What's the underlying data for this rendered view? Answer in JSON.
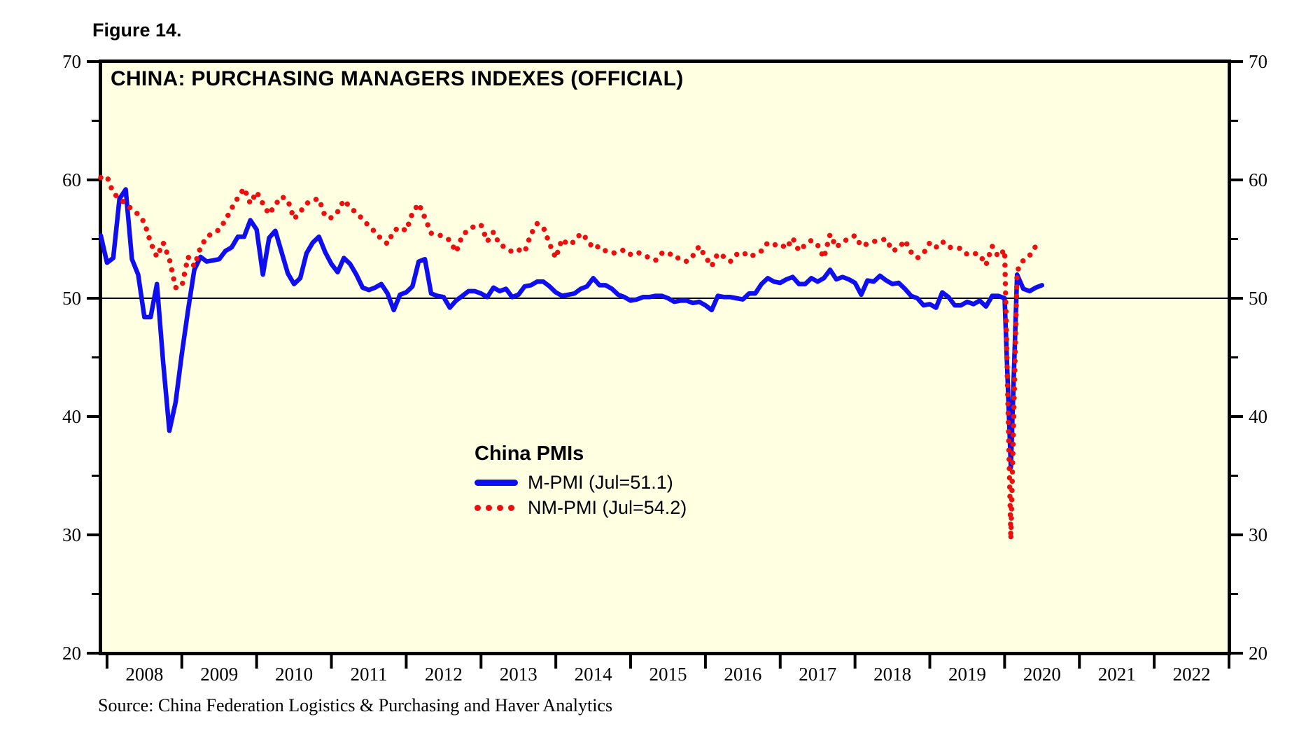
{
  "figure_label": "Figure 14.",
  "chart_title": "CHINA: PURCHASING MANAGERS INDEXES (OFFICIAL)",
  "source": "Source: China Federation Logistics & Purchasing and Haver Analytics",
  "colors": {
    "m_pmi": "#0E0EF0",
    "nm_pmi": "#EC0F0F",
    "plot_bg": "#FFFFE1",
    "axis": "#000000"
  },
  "legend": {
    "title": "China PMIs",
    "items": [
      {
        "label": "M-PMI (Jul=51.1)"
      },
      {
        "label": "NM-PMI (Jul=54.2)"
      }
    ]
  },
  "chart_data": {
    "type": "line",
    "frequency": "monthly",
    "x_start": "Dec 2007",
    "x_axis_end": "Jan 2023",
    "x_tick_labels": [
      "2008",
      "2009",
      "2010",
      "2011",
      "2012",
      "2013",
      "2014",
      "2015",
      "2016",
      "2017",
      "2018",
      "2019",
      "2020",
      "2021",
      "2022"
    ],
    "y_ticks": [
      70,
      60,
      50,
      40,
      30,
      20
    ],
    "y_minor_ticks": [
      65,
      55,
      45,
      35,
      25
    ],
    "ylim": [
      20,
      70
    ],
    "reference_line": 50,
    "series": [
      {
        "id": "m-pmi",
        "name": "M-PMI (Jul=51.1)",
        "style": "solid",
        "color": "#0E0EF0",
        "values": [
          55.3,
          53.0,
          53.4,
          58.4,
          59.2,
          53.3,
          52.0,
          48.4,
          48.4,
          51.2,
          44.6,
          38.8,
          41.2,
          45.3,
          49.0,
          52.4,
          53.5,
          53.1,
          53.2,
          53.3,
          54.0,
          54.3,
          55.2,
          55.2,
          56.6,
          55.8,
          52.0,
          55.1,
          55.7,
          53.9,
          52.1,
          51.2,
          51.7,
          53.8,
          54.7,
          55.2,
          53.9,
          52.9,
          52.2,
          53.4,
          52.9,
          52.0,
          50.9,
          50.7,
          50.9,
          51.2,
          50.4,
          49.0,
          50.3,
          50.5,
          51.0,
          53.1,
          53.3,
          50.4,
          50.2,
          50.1,
          49.2,
          49.8,
          50.2,
          50.6,
          50.6,
          50.4,
          50.1,
          50.9,
          50.6,
          50.8,
          50.1,
          50.3,
          51.0,
          51.1,
          51.4,
          51.4,
          51.0,
          50.5,
          50.2,
          50.3,
          50.4,
          50.8,
          51.0,
          51.7,
          51.1,
          51.1,
          50.8,
          50.3,
          50.1,
          49.8,
          49.9,
          50.1,
          50.1,
          50.2,
          50.2,
          50.0,
          49.7,
          49.8,
          49.8,
          49.6,
          49.7,
          49.4,
          49.0,
          50.2,
          50.1,
          50.1,
          50.0,
          49.9,
          50.4,
          50.4,
          51.2,
          51.7,
          51.4,
          51.3,
          51.6,
          51.8,
          51.2,
          51.2,
          51.7,
          51.4,
          51.7,
          52.4,
          51.6,
          51.8,
          51.6,
          51.3,
          50.3,
          51.5,
          51.4,
          51.9,
          51.5,
          51.2,
          51.3,
          50.8,
          50.2,
          50.0,
          49.4,
          49.5,
          49.2,
          50.5,
          50.1,
          49.4,
          49.4,
          49.7,
          49.5,
          49.8,
          49.3,
          50.2,
          50.2,
          50.0,
          35.7,
          52.0,
          50.8,
          50.6,
          50.9,
          51.1
        ]
      },
      {
        "id": "nm-pmi",
        "name": "NM-PMI (Jul=54.2)",
        "style": "dotted",
        "color": "#EC0F0F",
        "values": [
          60.2,
          60.3,
          58.9,
          58.4,
          58.0,
          57.5,
          57.1,
          56.4,
          54.7,
          53.5,
          54.7,
          53.3,
          50.9,
          51.0,
          53.5,
          52.7,
          54.3,
          55.2,
          55.5,
          55.8,
          56.6,
          57.6,
          58.5,
          59.3,
          58.0,
          59.0,
          58.0,
          57.1,
          57.9,
          58.6,
          58.3,
          56.7,
          57.3,
          58.0,
          58.3,
          58.4,
          56.9,
          56.8,
          57.3,
          58.3,
          57.7,
          57.2,
          56.7,
          56.1,
          55.6,
          55.0,
          54.6,
          55.7,
          56.0,
          55.7,
          57.2,
          58.0,
          56.8,
          55.5,
          55.4,
          55.2,
          54.9,
          53.9,
          55.3,
          55.8,
          56.1,
          56.2,
          54.8,
          55.6,
          54.5,
          54.3,
          53.9,
          54.1,
          53.9,
          55.4,
          56.3,
          56.0,
          54.6,
          53.4,
          55.0,
          54.5,
          54.8,
          55.5,
          55.0,
          54.2,
          54.4,
          54.0,
          53.8,
          53.9,
          54.1,
          53.7,
          53.9,
          53.7,
          53.4,
          53.2,
          53.8,
          53.9,
          53.4,
          53.4,
          53.1,
          53.6,
          54.4,
          53.5,
          52.7,
          53.8,
          53.5,
          53.1,
          53.7,
          53.9,
          53.5,
          53.7,
          54.0,
          54.7,
          54.5,
          54.6,
          54.2,
          55.1,
          54.0,
          54.5,
          54.9,
          54.5,
          53.4,
          55.4,
          54.3,
          54.8,
          55.0,
          55.3,
          54.4,
          54.6,
          54.8,
          54.9,
          55.0,
          54.0,
          54.2,
          54.9,
          53.9,
          53.4,
          53.8,
          54.7,
          54.3,
          54.8,
          54.3,
          54.3,
          54.2,
          53.7,
          53.8,
          53.7,
          52.8,
          54.4,
          53.5,
          54.1,
          29.6,
          52.3,
          53.2,
          53.6,
          54.4,
          54.2
        ]
      }
    ]
  }
}
